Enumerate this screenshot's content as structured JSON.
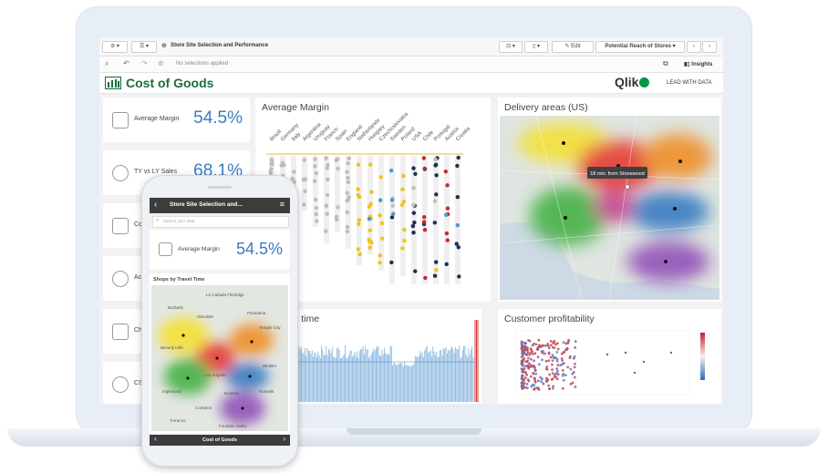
{
  "app": {
    "sheet_name": "Store Site Selection and Performance",
    "edit_label": "Edit",
    "bookmark_label": "Potential Reach of Stores",
    "insights_label": "Insights",
    "selections_text": "No selections applied",
    "title": "Cost of Goods",
    "brand": "Qlik",
    "brand_tagline": "LEAD WITH DATA"
  },
  "kpis": [
    {
      "label": "Average Margin",
      "value": "54.5%"
    },
    {
      "label": "TY vs LY Sales",
      "value": "68.1%"
    },
    {
      "label": "Cor",
      "value": ""
    },
    {
      "label": "Acc",
      "value": ""
    },
    {
      "label": "Chur",
      "value": ""
    },
    {
      "label": "CSAT",
      "value": ""
    }
  ],
  "panels": {
    "avg_margin_title": "Average Margin",
    "delivery_title": "Delivery areas (US)",
    "delivery_tooltip": "18 min. from Stonewood",
    "over_time_title": "er time",
    "profitability_title": "Customer profitability"
  },
  "chart_data": [
    {
      "type": "scatter",
      "title": "Average Margin",
      "categories": [
        "Brazil",
        "Germany",
        "Italy",
        "Argentina",
        "Uruguay",
        "France",
        "Spain",
        "England",
        "Netherlands",
        "Hungary",
        "Czechoslovakia",
        "Sweden",
        "Poland",
        "USA",
        "Chile",
        "Portugal",
        "Austria",
        "Croatia"
      ],
      "series_colors": [
        "#bdbdbd",
        "#f2c21b",
        "#1f2d52",
        "#4f97d0",
        "#c7272d"
      ]
    }
  ],
  "phone": {
    "header_title": "Store Site Selection and...",
    "search_placeholder": "Search your data",
    "kpi_label": "Average Margin",
    "kpi_value": "54.5%",
    "map_title": "Shops by Travel Time",
    "footer_title": "Cost of Goods",
    "map_labels": [
      "La Cañada Flintridge",
      "Burbank",
      "Glendale",
      "Pasadena",
      "Temple City",
      "Beverly Hills",
      "Los Angeles",
      "Whittier",
      "Inglewood",
      "Downey",
      "Compton",
      "Norwalk",
      "Fountain Valley",
      "Torrance"
    ]
  },
  "colors": {
    "accent": "#3a7cbf",
    "brand_green": "#1a6e3e",
    "qlik_green": "#009845"
  }
}
